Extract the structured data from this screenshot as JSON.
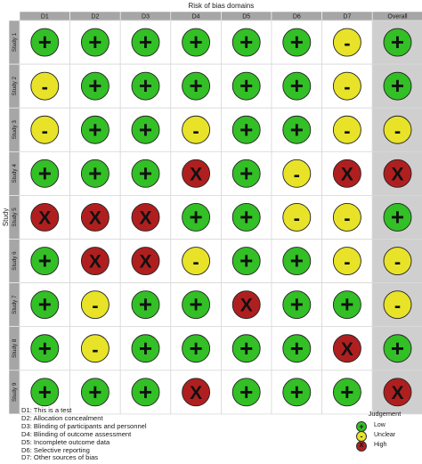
{
  "chart_data": {
    "type": "table",
    "title": "Risk of bias domains",
    "ylabel": "Study",
    "columns": [
      "D1",
      "D2",
      "D3",
      "D4",
      "D5",
      "D6",
      "D7",
      "Overall"
    ],
    "rows": [
      "Study 1",
      "Study 2",
      "Study 3",
      "Study 4",
      "Study 5",
      "Study 6",
      "Study 7",
      "Study 8",
      "Study 9"
    ],
    "judgements": [
      [
        "Low",
        "Low",
        "Low",
        "Low",
        "Low",
        "Low",
        "Unclear",
        "Low"
      ],
      [
        "Unclear",
        "Low",
        "Low",
        "Low",
        "Low",
        "Low",
        "Unclear",
        "Low"
      ],
      [
        "Unclear",
        "Low",
        "Low",
        "Unclear",
        "Low",
        "Low",
        "Unclear",
        "Unclear"
      ],
      [
        "Low",
        "Low",
        "Low",
        "High",
        "Low",
        "Unclear",
        "High",
        "High"
      ],
      [
        "High",
        "High",
        "High",
        "Low",
        "Low",
        "Unclear",
        "Unclear",
        "Low"
      ],
      [
        "Low",
        "High",
        "High",
        "Unclear",
        "Low",
        "Low",
        "Unclear",
        "Unclear"
      ],
      [
        "Low",
        "Unclear",
        "Low",
        "Low",
        "High",
        "Low",
        "Low",
        "Unclear"
      ],
      [
        "Low",
        "Unclear",
        "Low",
        "Low",
        "Low",
        "Low",
        "High",
        "Low"
      ],
      [
        "Low",
        "Low",
        "Low",
        "High",
        "Low",
        "Low",
        "Low",
        "High"
      ]
    ],
    "legend_title": "Judgement",
    "levels": [
      {
        "name": "Low",
        "symbol": "+",
        "color": "#33bf26"
      },
      {
        "name": "Unclear",
        "symbol": "-",
        "color": "#e8e328"
      },
      {
        "name": "High",
        "symbol": "X",
        "color": "#b01f1f"
      }
    ],
    "domain_key": [
      "D1: This is a test",
      "D2: Allocation concealment",
      "D3: Blinding of participants and personnel",
      "D4: Blinding of outcome assessment",
      "D5: Incomplete outcome data",
      "D6: Selective reporting",
      "D7: Other sources of bias"
    ],
    "colors": {
      "header_bg": "#a6a6a6",
      "overall_bg": "#cfcfcf",
      "grid_line": "#d9d9d9"
    }
  }
}
